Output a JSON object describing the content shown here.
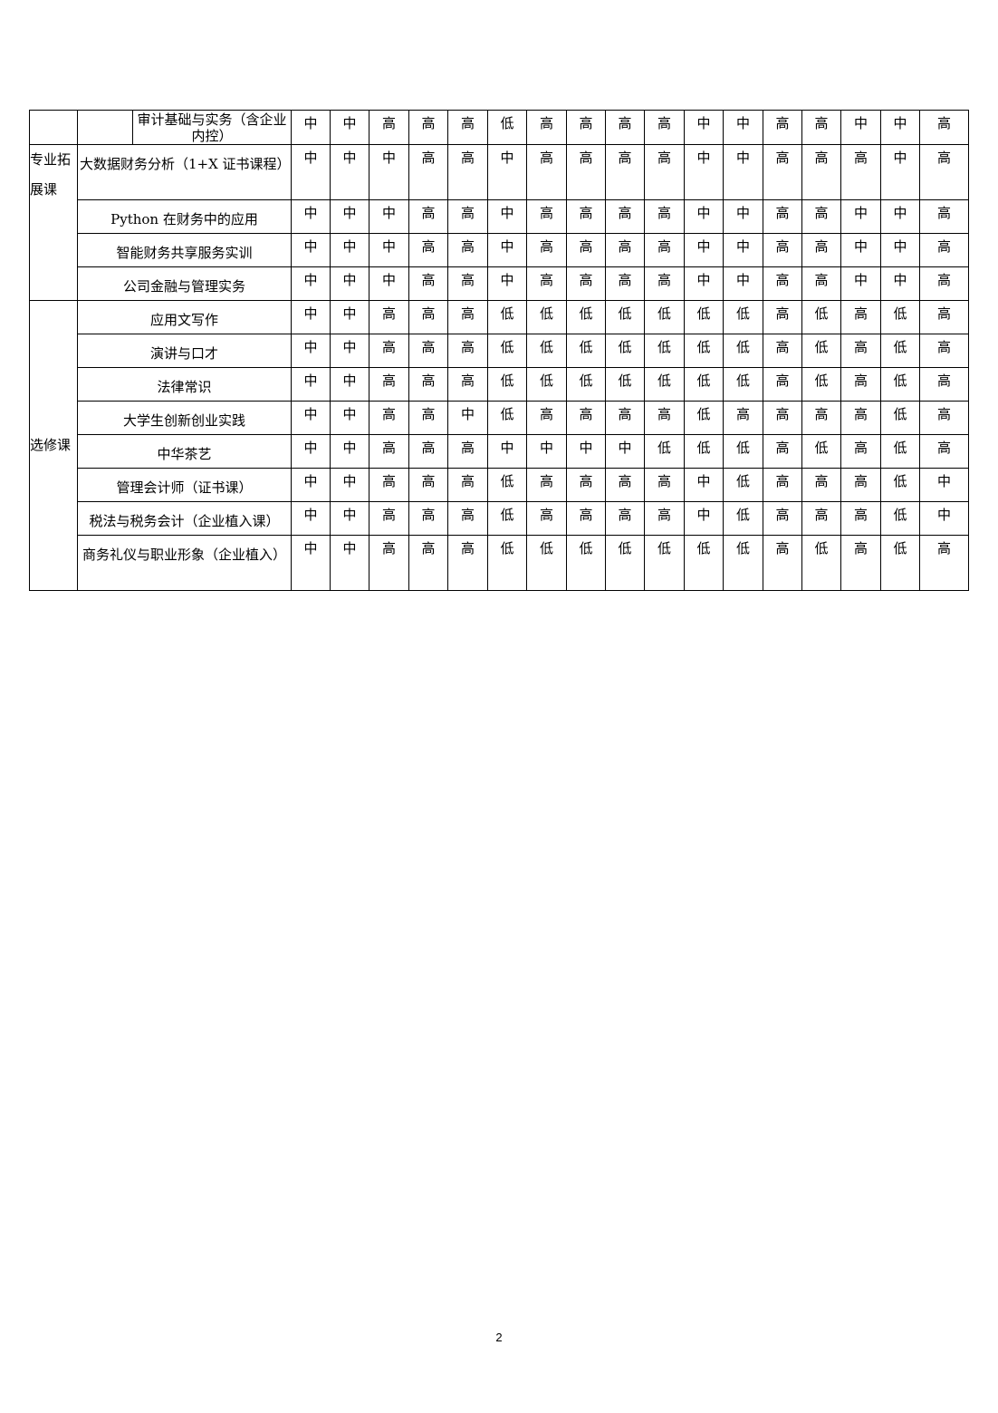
{
  "table": {
    "rows": [
      {
        "category": "",
        "course": "审计基础与实务（含企业内控）",
        "values": [
          "中",
          "中",
          "高",
          "高",
          "高",
          "低",
          "高",
          "高",
          "高",
          "高",
          "中",
          "中",
          "高",
          "高",
          "中",
          "中",
          "高"
        ]
      },
      {
        "category": "专业拓展课",
        "course": "大数据财务分析（1+X 证书课程）",
        "values": [
          "中",
          "中",
          "中",
          "高",
          "高",
          "中",
          "高",
          "高",
          "高",
          "高",
          "中",
          "中",
          "高",
          "高",
          "高",
          "中",
          "高"
        ]
      },
      {
        "category": "",
        "course": "Python 在财务中的应用",
        "values": [
          "中",
          "中",
          "中",
          "高",
          "高",
          "中",
          "高",
          "高",
          "高",
          "高",
          "中",
          "中",
          "高",
          "高",
          "中",
          "中",
          "高"
        ]
      },
      {
        "category": "",
        "course": "智能财务共享服务实训",
        "values": [
          "中",
          "中",
          "中",
          "高",
          "高",
          "中",
          "高",
          "高",
          "高",
          "高",
          "中",
          "中",
          "高",
          "高",
          "中",
          "中",
          "高"
        ]
      },
      {
        "category": "",
        "course": "公司金融与管理实务",
        "values": [
          "中",
          "中",
          "中",
          "高",
          "高",
          "中",
          "高",
          "高",
          "高",
          "高",
          "中",
          "中",
          "高",
          "高",
          "中",
          "中",
          "高"
        ]
      },
      {
        "category": "选修课",
        "course": "应用文写作",
        "values": [
          "中",
          "中",
          "高",
          "高",
          "高",
          "低",
          "低",
          "低",
          "低",
          "低",
          "低",
          "低",
          "高",
          "低",
          "高",
          "低",
          "高"
        ]
      },
      {
        "category": "",
        "course": "演讲与口才",
        "values": [
          "中",
          "中",
          "高",
          "高",
          "高",
          "低",
          "低",
          "低",
          "低",
          "低",
          "低",
          "低",
          "高",
          "低",
          "高",
          "低",
          "高"
        ]
      },
      {
        "category": "",
        "course": "法律常识",
        "values": [
          "中",
          "中",
          "高",
          "高",
          "高",
          "低",
          "低",
          "低",
          "低",
          "低",
          "低",
          "低",
          "高",
          "低",
          "高",
          "低",
          "高"
        ]
      },
      {
        "category": "",
        "course": "大学生创新创业实践",
        "values": [
          "中",
          "中",
          "高",
          "高",
          "中",
          "低",
          "高",
          "高",
          "高",
          "高",
          "低",
          "高",
          "高",
          "高",
          "高",
          "低",
          "高"
        ]
      },
      {
        "category": "",
        "course": "中华茶艺",
        "values": [
          "中",
          "中",
          "高",
          "高",
          "高",
          "中",
          "中",
          "中",
          "中",
          "低",
          "低",
          "低",
          "高",
          "低",
          "高",
          "低",
          "高"
        ]
      },
      {
        "category": "",
        "course": "管理会计师（证书课）",
        "values": [
          "中",
          "中",
          "高",
          "高",
          "高",
          "低",
          "高",
          "高",
          "高",
          "高",
          "中",
          "低",
          "高",
          "高",
          "高",
          "低",
          "中"
        ]
      },
      {
        "category": "",
        "course": "税法与税务会计（企业植入课）",
        "values": [
          "中",
          "中",
          "高",
          "高",
          "高",
          "低",
          "高",
          "高",
          "高",
          "高",
          "中",
          "低",
          "高",
          "高",
          "高",
          "低",
          "中"
        ]
      },
      {
        "category": "",
        "course": "商务礼仪与职业形象（企业植入）",
        "values": [
          "中",
          "中",
          "高",
          "高",
          "高",
          "低",
          "低",
          "低",
          "低",
          "低",
          "低",
          "低",
          "高",
          "低",
          "高",
          "低",
          "高"
        ]
      }
    ]
  },
  "footer": {
    "page_number": "2"
  }
}
